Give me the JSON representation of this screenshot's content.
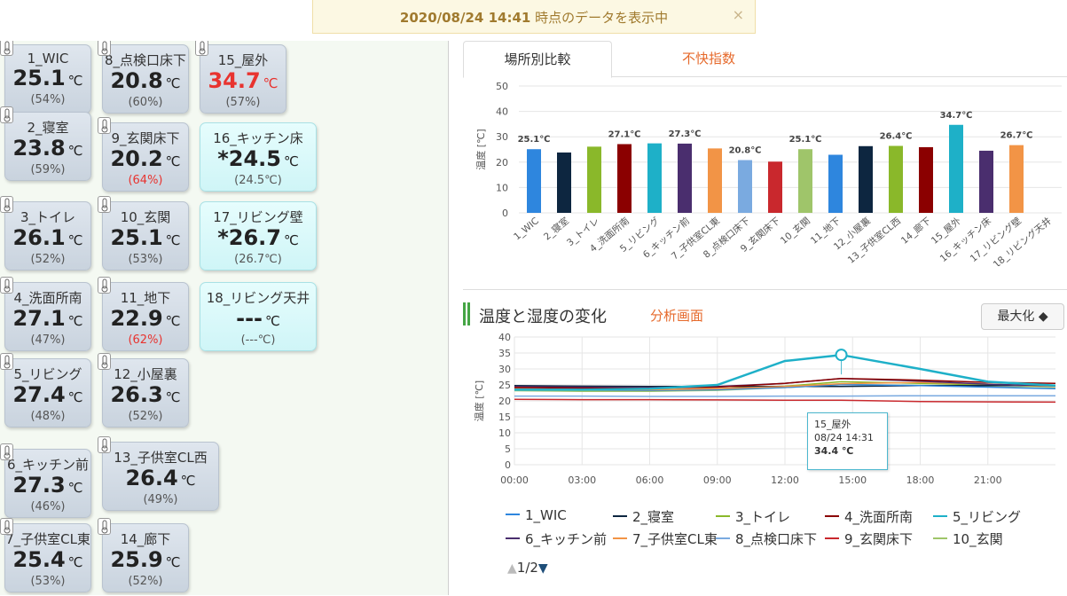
{
  "banner": {
    "datetime": "2020/08/24 14:41",
    "suffix": " 時点のデータを表示中",
    "close_icon": "×"
  },
  "sensors": [
    {
      "name": "1_WIC",
      "temp": "25.1",
      "unit": "℃",
      "hum": "(54%)"
    },
    {
      "name": "2_寝室",
      "temp": "23.8",
      "unit": "℃",
      "hum": "(59%)"
    },
    {
      "name": "3_トイレ",
      "temp": "26.1",
      "unit": "℃",
      "hum": "(52%)"
    },
    {
      "name": "4_洗面所南",
      "temp": "27.1",
      "unit": "℃",
      "hum": "(47%)"
    },
    {
      "name": "5_リビング",
      "temp": "27.4",
      "unit": "℃",
      "hum": "(48%)"
    },
    {
      "name": "6_キッチン前",
      "temp": "27.3",
      "unit": "℃",
      "hum": "(46%)"
    },
    {
      "name": "7_子供室CL東",
      "temp": "25.4",
      "unit": "℃",
      "hum": "(53%)"
    },
    {
      "name": "8_点検口床下",
      "temp": "20.8",
      "unit": "℃",
      "hum": "(60%)"
    },
    {
      "name": "9_玄関床下",
      "temp": "20.2",
      "unit": "℃",
      "hum": "(64%)"
    },
    {
      "name": "10_玄関",
      "temp": "25.1",
      "unit": "℃",
      "hum": "(53%)"
    },
    {
      "name": "11_地下",
      "temp": "22.9",
      "unit": "℃",
      "hum": "(62%)"
    },
    {
      "name": "12_小屋裏",
      "temp": "26.3",
      "unit": "℃",
      "hum": "(52%)"
    },
    {
      "name": "13_子供室CL西",
      "temp": "26.4",
      "unit": "℃",
      "hum": "(49%)"
    },
    {
      "name": "14_廊下",
      "temp": "25.9",
      "unit": "℃",
      "hum": "(52%)"
    },
    {
      "name": "15_屋外",
      "temp": "34.7",
      "unit": "℃",
      "hum": "(57%)"
    },
    {
      "name": "16_キッチン床",
      "temp": "*24.5",
      "unit": "℃",
      "hum": "(24.5℃)"
    },
    {
      "name": "17_リビング壁",
      "temp": "*26.7",
      "unit": "℃",
      "hum": "(26.7℃)"
    },
    {
      "name": "18_リビング天井",
      "temp": "---",
      "unit": "℃",
      "hum": "(---℃)"
    }
  ],
  "tabs": {
    "location": "場所別比較",
    "discomfort": "不快指数"
  },
  "bar_chart": {
    "ylabel": "温度 [℃]",
    "yticks": [
      "50",
      "40",
      "30",
      "20",
      "10",
      "0"
    ]
  },
  "section2": {
    "title": "温度と湿度の変化",
    "link": "分析画面",
    "max_button": "最大化 ◆"
  },
  "line_chart": {
    "ylabel": "温度 [℃]",
    "yticks": [
      "40",
      "35",
      "30",
      "25",
      "20",
      "15",
      "10",
      "5",
      "0"
    ],
    "xticks": [
      "00:00",
      "03:00",
      "06:00",
      "09:00",
      "12:00",
      "15:00",
      "18:00",
      "21:00"
    ]
  },
  "tooltip": {
    "name": "15_屋外",
    "time": "08/24 14:31",
    "value": "34.4 ℃"
  },
  "legend": {
    "items": [
      {
        "label": "1_WIC",
        "color": "#2e86de"
      },
      {
        "label": "2_寝室",
        "color": "#0d2640"
      },
      {
        "label": "3_トイレ",
        "color": "#8ab82a"
      },
      {
        "label": "4_洗面所南",
        "color": "#8b0000"
      },
      {
        "label": "5_リビング",
        "color": "#1eb0c8"
      },
      {
        "label": "6_キッチン前",
        "color": "#4a2e6e"
      },
      {
        "label": "7_子供室CL東",
        "color": "#f29446"
      },
      {
        "label": "8_点検口床下",
        "color": "#7aaae0"
      },
      {
        "label": "9_玄関床下",
        "color": "#c9282d"
      },
      {
        "label": "10_玄関",
        "color": "#9fc56a"
      }
    ],
    "pager": "1/2"
  },
  "chart_data": [
    {
      "type": "bar",
      "categories": [
        "1_WIC",
        "2_寝室",
        "3_トイレ",
        "4_洗面所南",
        "5_リビング",
        "6_キッチン前",
        "7_子供室CL東",
        "8_点検口床下",
        "9_玄関床下",
        "10_玄関",
        "11_地下",
        "12_小屋裏",
        "13_子供室CL西",
        "14_廊下",
        "15_屋外",
        "16_キッチン床",
        "17_リビング壁",
        "18_リビング天井"
      ],
      "values": [
        25.1,
        23.8,
        26.1,
        27.1,
        27.4,
        27.3,
        25.4,
        20.8,
        20.2,
        25.1,
        22.9,
        26.3,
        26.4,
        25.9,
        34.7,
        24.5,
        26.7,
        null
      ],
      "colors": [
        "#2e86de",
        "#0d2640",
        "#8ab82a",
        "#8b0000",
        "#1eb0c8",
        "#4a2e6e",
        "#f29446",
        "#7aaae0",
        "#c9282d",
        "#9fc56a",
        "#2e86de",
        "#0d2640",
        "#8ab82a",
        "#8b0000",
        "#1eb0c8",
        "#4a2e6e",
        "#f29446",
        "#7aaae0"
      ],
      "data_labels": {
        "0": "25.1℃",
        "3": "27.1℃",
        "5": "27.3℃",
        "7": "20.8℃",
        "9": "25.1℃",
        "12": "26.4℃",
        "14": "34.7℃",
        "16": "26.7℃"
      },
      "ylabel": "温度 [℃]",
      "ylim": [
        0,
        50
      ]
    },
    {
      "type": "line",
      "x": [
        0,
        3,
        6,
        9,
        12,
        14.5,
        18,
        21,
        24
      ],
      "series": [
        {
          "name": "15_屋外",
          "color": "#1eb0c8",
          "values": [
            23.5,
            23.5,
            23.8,
            25,
            32.5,
            34.4,
            30,
            26,
            24.8
          ]
        },
        {
          "name": "4_洗面所南",
          "color": "#8b0000",
          "values": [
            24.2,
            24,
            24,
            24.3,
            25.5,
            27,
            26.5,
            25.8,
            25.5
          ]
        },
        {
          "name": "6_キッチン前",
          "color": "#4a2e6e",
          "values": [
            24.5,
            24.3,
            24.2,
            24.5,
            25.5,
            27,
            26.2,
            25.2,
            24.7
          ]
        },
        {
          "name": "7_子供室CL東",
          "color": "#f29446",
          "values": [
            23.8,
            23.5,
            23.5,
            23.8,
            24.5,
            25.4,
            25.8,
            25.3,
            24.5
          ]
        },
        {
          "name": "1_WIC",
          "color": "#2e86de",
          "values": [
            23.6,
            23.4,
            23.3,
            23.5,
            24.2,
            25.1,
            24.8,
            24.3,
            23.8
          ]
        },
        {
          "name": "2_寝室",
          "color": "#0d2640",
          "values": [
            24.8,
            24.6,
            24.5,
            24.5,
            24.5,
            24.5,
            24.8,
            24.8,
            24.8
          ]
        },
        {
          "name": "8_点検口床下",
          "color": "#7aaae0",
          "values": [
            21.5,
            21.5,
            21.4,
            21.4,
            21.5,
            21.5,
            21.6,
            21.6,
            21.6
          ]
        },
        {
          "name": "9_玄関床下",
          "color": "#c9282d",
          "values": [
            20.5,
            20.4,
            20.4,
            20.3,
            20.2,
            20.2,
            19.8,
            19.7,
            19.6
          ]
        },
        {
          "name": "3_トイレ",
          "color": "#8ab82a",
          "values": [
            23.7,
            23.5,
            23.5,
            23.8,
            24.6,
            26,
            25.5,
            25,
            24.5
          ]
        },
        {
          "name": "10_玄関",
          "color": "#9fc56a",
          "values": [
            23.2,
            23,
            23,
            23.3,
            24.2,
            25.1,
            24.9,
            24.4,
            24
          ]
        }
      ],
      "ylabel": "温度 [℃]",
      "ylim": [
        0,
        40
      ],
      "xlim": [
        0,
        24
      ]
    }
  ]
}
